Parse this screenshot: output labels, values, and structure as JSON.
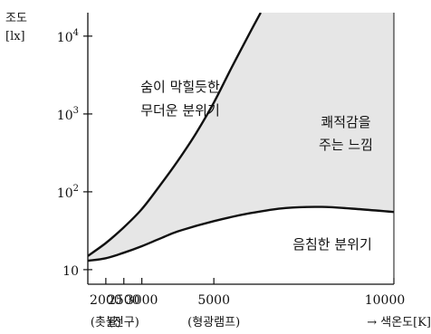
{
  "chart_data": {
    "type": "area",
    "y_axis": {
      "label_line1": "조도",
      "label_line2": "[lx]",
      "scale": "log",
      "ticks": [
        {
          "value": 10,
          "label": "10",
          "superscript": ""
        },
        {
          "value": 100,
          "label": "10",
          "superscript": "2"
        },
        {
          "value": 1000,
          "label": "10",
          "superscript": "3"
        },
        {
          "value": 10000,
          "label": "10",
          "superscript": "4"
        }
      ],
      "range": [
        6.5,
        20000
      ]
    },
    "x_axis": {
      "label": "→ 색온도[K]",
      "range": [
        1500,
        10000
      ],
      "ticks": [
        {
          "value": 2000,
          "label": "2000",
          "sublabel": "(촛불)"
        },
        {
          "value": 2500,
          "label": "2500",
          "sublabel": "(전구)"
        },
        {
          "value": 3000,
          "label": "3000",
          "sublabel": ""
        },
        {
          "value": 5000,
          "label": "5000",
          "sublabel": "(형광램프)"
        },
        {
          "value": 10000,
          "label": "10000",
          "sublabel": ""
        }
      ]
    },
    "grid": false,
    "fill_color": "#e6e6e6",
    "series": [
      {
        "key": "upper",
        "points": [
          [
            1500,
            15
          ],
          [
            2000,
            22
          ],
          [
            2500,
            35
          ],
          [
            3000,
            60
          ],
          [
            3500,
            120
          ],
          [
            4000,
            250
          ],
          [
            4500,
            560
          ],
          [
            5000,
            1400
          ],
          [
            5500,
            4000
          ],
          [
            6000,
            11000
          ],
          [
            6300,
            20000
          ]
        ]
      },
      {
        "key": "lower",
        "points": [
          [
            1500,
            13
          ],
          [
            2000,
            14
          ],
          [
            2500,
            16.5
          ],
          [
            3000,
            20
          ],
          [
            3500,
            25
          ],
          [
            4000,
            31
          ],
          [
            5000,
            42
          ],
          [
            6000,
            53
          ],
          [
            7000,
            62
          ],
          [
            8000,
            64
          ],
          [
            9000,
            60
          ],
          [
            10000,
            55
          ]
        ]
      }
    ],
    "annotations": [
      {
        "key": "heavy",
        "line1": "숨이 막힐듯한",
        "line2": "무더운 분위기"
      },
      {
        "key": "comfort",
        "line1": "쾌적감을",
        "line2": "주는 느낌"
      },
      {
        "key": "gloomy",
        "line1": "음침한 분위기",
        "line2": ""
      }
    ]
  }
}
